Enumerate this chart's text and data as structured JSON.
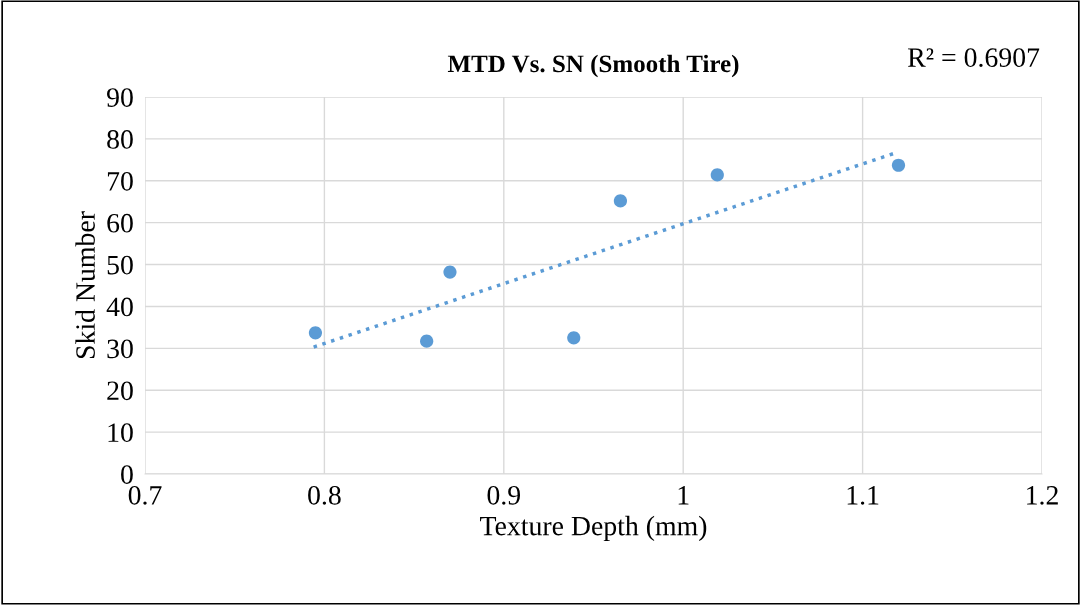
{
  "chart_data": {
    "type": "scatter",
    "title": "MTD Vs. SN (Smooth Tire)",
    "xlabel": "Texture Depth (mm)",
    "ylabel": "Skid Number",
    "annotations": [
      "R² = 0.6907"
    ],
    "series": [
      {
        "marker": "circle",
        "color": "#5b9bd5",
        "x": [
          0.795,
          0.857,
          0.87,
          0.939,
          0.965,
          1.019,
          1.12
        ],
        "values": [
          33.7,
          31.7,
          48.2,
          32.5,
          65.2,
          71.4,
          73.7
        ]
      },
      {
        "type": "line",
        "color": "#5b9bd5",
        "line_style": "dotted",
        "x": [
          0.794,
          1.118
        ],
        "values": [
          30.3,
          76.6
        ]
      }
    ],
    "xlim": [
      0.7,
      1.2
    ],
    "xticks": [
      0.7,
      0.8,
      0.9,
      1,
      1.1,
      1.2
    ],
    "ylim": [
      0,
      90
    ],
    "yticks": [
      0,
      10,
      20,
      30,
      40,
      50,
      60,
      70,
      80,
      90
    ],
    "grid": true
  }
}
